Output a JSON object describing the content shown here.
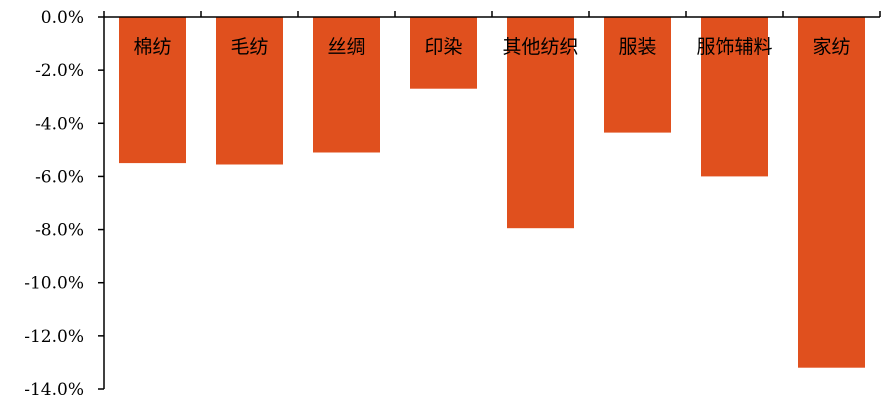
{
  "chart_data": {
    "type": "bar",
    "title": "",
    "xlabel": "",
    "ylabel": "",
    "categories": [
      "棉纺",
      "毛纺",
      "丝绸",
      "印染",
      "其他纺织",
      "服装",
      "服饰辅料",
      "家纺"
    ],
    "values": [
      -5.5,
      -5.55,
      -5.1,
      -2.7,
      -7.95,
      -4.35,
      -6.0,
      -13.2
    ],
    "ylim": [
      -14,
      0
    ],
    "yticks": [
      0,
      -2,
      -4,
      -6,
      -8,
      -10,
      -12,
      -14
    ],
    "ytick_labels": [
      "0.0%",
      "-2.0%",
      "-4.0%",
      "-6.0%",
      "-8.0%",
      "-10.0%",
      "-12.0%",
      "-14.0%"
    ],
    "bar_color": "#e0501e",
    "axis_color": "#000000",
    "grid": false,
    "legend": "none"
  }
}
